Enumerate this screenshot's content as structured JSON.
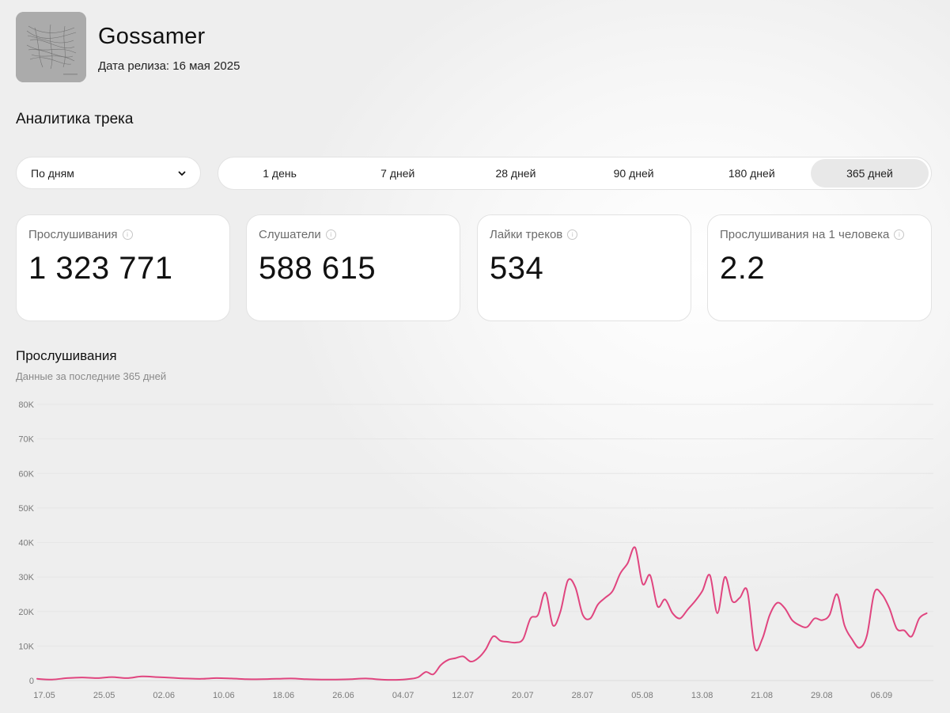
{
  "track": {
    "title": "Gossamer",
    "release_date": "Дата релиза: 16 мая 2025"
  },
  "section_title": "Аналитика трека",
  "period_select": {
    "value": "По дням"
  },
  "ranges": [
    {
      "label": "1 день",
      "active": false
    },
    {
      "label": "7 дней",
      "active": false
    },
    {
      "label": "28 дней",
      "active": false
    },
    {
      "label": "90 дней",
      "active": false
    },
    {
      "label": "180 дней",
      "active": false
    },
    {
      "label": "365 дней",
      "active": true
    }
  ],
  "stats": [
    {
      "label": "Прослушивания",
      "value": "1 323 771"
    },
    {
      "label": "Слушатели",
      "value": "588 615"
    },
    {
      "label": "Лайки треков",
      "value": "534"
    },
    {
      "label": "Прослушивания на 1 человека",
      "value": "2.2"
    }
  ],
  "chart": {
    "title": "Прослушивания",
    "subtitle": "Данные за последние 365 дней"
  },
  "colors": {
    "line": "#e0457f",
    "accent_active": "#e8e8e8"
  },
  "chart_data": {
    "type": "line",
    "ylim": [
      0,
      80000
    ],
    "y_ticks": [
      0,
      10000,
      20000,
      30000,
      40000,
      50000,
      60000,
      70000,
      80000
    ],
    "y_tick_labels": [
      "0",
      "10K",
      "20K",
      "30K",
      "40K",
      "50K",
      "60K",
      "70K",
      "80K"
    ],
    "x_tick_labels": [
      "17.05",
      "25.05",
      "02.06",
      "10.06",
      "18.06",
      "26.06",
      "04.07",
      "12.07",
      "20.07",
      "28.07",
      "05.08",
      "13.08",
      "21.08",
      "29.08",
      "06.09"
    ],
    "grid": true,
    "series": [
      {
        "values": [
          {
            "x": "2025-05-17",
            "y": 500
          },
          {
            "x": "2025-05-19",
            "y": 300
          },
          {
            "x": "2025-05-21",
            "y": 700
          },
          {
            "x": "2025-05-23",
            "y": 900
          },
          {
            "x": "2025-05-25",
            "y": 700
          },
          {
            "x": "2025-05-27",
            "y": 1000
          },
          {
            "x": "2025-05-29",
            "y": 700
          },
          {
            "x": "2025-05-31",
            "y": 1200
          },
          {
            "x": "2025-06-02",
            "y": 1000
          },
          {
            "x": "2025-06-04",
            "y": 800
          },
          {
            "x": "2025-06-06",
            "y": 600
          },
          {
            "x": "2025-06-08",
            "y": 500
          },
          {
            "x": "2025-06-10",
            "y": 700
          },
          {
            "x": "2025-06-12",
            "y": 600
          },
          {
            "x": "2025-06-14",
            "y": 400
          },
          {
            "x": "2025-06-16",
            "y": 400
          },
          {
            "x": "2025-06-18",
            "y": 500
          },
          {
            "x": "2025-06-20",
            "y": 600
          },
          {
            "x": "2025-06-22",
            "y": 400
          },
          {
            "x": "2025-06-24",
            "y": 300
          },
          {
            "x": "2025-06-26",
            "y": 300
          },
          {
            "x": "2025-06-28",
            "y": 400
          },
          {
            "x": "2025-06-30",
            "y": 600
          },
          {
            "x": "2025-07-02",
            "y": 300
          },
          {
            "x": "2025-07-04",
            "y": 200
          },
          {
            "x": "2025-07-06",
            "y": 500
          },
          {
            "x": "2025-07-07",
            "y": 1000
          },
          {
            "x": "2025-07-08",
            "y": 2500
          },
          {
            "x": "2025-07-09",
            "y": 1800
          },
          {
            "x": "2025-07-10",
            "y": 4500
          },
          {
            "x": "2025-07-11",
            "y": 6000
          },
          {
            "x": "2025-07-12",
            "y": 6500
          },
          {
            "x": "2025-07-13",
            "y": 7000
          },
          {
            "x": "2025-07-14",
            "y": 5500
          },
          {
            "x": "2025-07-15",
            "y": 6500
          },
          {
            "x": "2025-07-16",
            "y": 9000
          },
          {
            "x": "2025-07-17",
            "y": 12800
          },
          {
            "x": "2025-07-18",
            "y": 11500
          },
          {
            "x": "2025-07-19",
            "y": 11200
          },
          {
            "x": "2025-07-20",
            "y": 11000
          },
          {
            "x": "2025-07-21",
            "y": 12000
          },
          {
            "x": "2025-07-22",
            "y": 18000
          },
          {
            "x": "2025-07-23",
            "y": 19000
          },
          {
            "x": "2025-07-24",
            "y": 25500
          },
          {
            "x": "2025-07-25",
            "y": 16000
          },
          {
            "x": "2025-07-26",
            "y": 20000
          },
          {
            "x": "2025-07-27",
            "y": 29000
          },
          {
            "x": "2025-07-28",
            "y": 27000
          },
          {
            "x": "2025-07-29",
            "y": 19000
          },
          {
            "x": "2025-07-30",
            "y": 18000
          },
          {
            "x": "2025-07-31",
            "y": 22000
          },
          {
            "x": "2025-08-01",
            "y": 24000
          },
          {
            "x": "2025-08-02",
            "y": 26000
          },
          {
            "x": "2025-08-03",
            "y": 31000
          },
          {
            "x": "2025-08-04",
            "y": 34000
          },
          {
            "x": "2025-08-05",
            "y": 38500
          },
          {
            "x": "2025-08-06",
            "y": 28000
          },
          {
            "x": "2025-08-07",
            "y": 30500
          },
          {
            "x": "2025-08-08",
            "y": 21500
          },
          {
            "x": "2025-08-09",
            "y": 23500
          },
          {
            "x": "2025-08-10",
            "y": 19500
          },
          {
            "x": "2025-08-11",
            "y": 18000
          },
          {
            "x": "2025-08-12",
            "y": 20500
          },
          {
            "x": "2025-08-13",
            "y": 23000
          },
          {
            "x": "2025-08-14",
            "y": 26000
          },
          {
            "x": "2025-08-15",
            "y": 30500
          },
          {
            "x": "2025-08-16",
            "y": 19500
          },
          {
            "x": "2025-08-17",
            "y": 30000
          },
          {
            "x": "2025-08-18",
            "y": 23000
          },
          {
            "x": "2025-08-19",
            "y": 24000
          },
          {
            "x": "2025-08-20",
            "y": 26000
          },
          {
            "x": "2025-08-21",
            "y": 9500
          },
          {
            "x": "2025-08-22",
            "y": 12000
          },
          {
            "x": "2025-08-23",
            "y": 19000
          },
          {
            "x": "2025-08-24",
            "y": 22500
          },
          {
            "x": "2025-08-25",
            "y": 21000
          },
          {
            "x": "2025-08-26",
            "y": 17500
          },
          {
            "x": "2025-08-27",
            "y": 16000
          },
          {
            "x": "2025-08-28",
            "y": 15500
          },
          {
            "x": "2025-08-29",
            "y": 18000
          },
          {
            "x": "2025-08-30",
            "y": 17500
          },
          {
            "x": "2025-08-31",
            "y": 19000
          },
          {
            "x": "2025-09-01",
            "y": 25000
          },
          {
            "x": "2025-09-02",
            "y": 16000
          },
          {
            "x": "2025-09-03",
            "y": 12000
          },
          {
            "x": "2025-09-04",
            "y": 9500
          },
          {
            "x": "2025-09-05",
            "y": 13000
          },
          {
            "x": "2025-09-06",
            "y": 25500
          },
          {
            "x": "2025-09-07",
            "y": 25000
          },
          {
            "x": "2025-09-08",
            "y": 21000
          },
          {
            "x": "2025-09-09",
            "y": 15000
          },
          {
            "x": "2025-09-10",
            "y": 14500
          },
          {
            "x": "2025-09-11",
            "y": 12800
          },
          {
            "x": "2025-09-12",
            "y": 18000
          },
          {
            "x": "2025-09-13",
            "y": 19500
          }
        ]
      }
    ]
  }
}
